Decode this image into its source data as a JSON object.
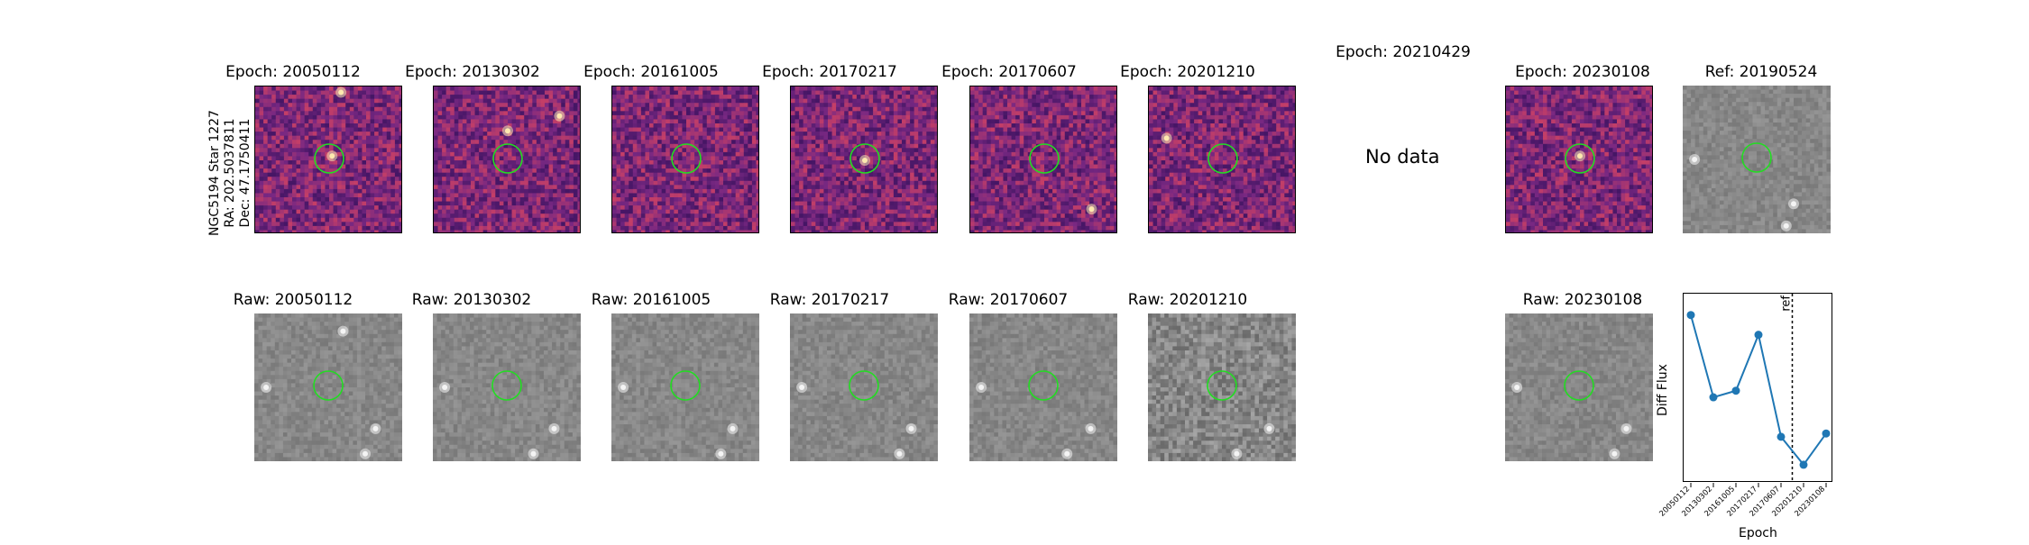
{
  "side_label": [
    "NGC5194 Star 1227",
    "RA: 202.5037811",
    "Dec: 47.1750411"
  ],
  "diff_titles": [
    "Epoch: 20050112",
    "Epoch: 20130302",
    "Epoch: 20161005",
    "Epoch: 20170217",
    "Epoch: 20170607",
    "Epoch: 20201210",
    "Epoch: 20210429",
    "Epoch: 20230108"
  ],
  "ref_title": "Ref: 20190524",
  "raw_titles": [
    "Raw: 20050112",
    "Raw: 20130302",
    "Raw: 20161005",
    "Raw: 20170217",
    "Raw: 20170607",
    "Raw: 20201210",
    "Raw: 20230108"
  ],
  "no_data_text": "No data",
  "colors": {
    "marker_circle": "#22dd22",
    "series": "#1f77b4",
    "diff_cmap_base": "#7b3286",
    "raw_base": "#8a8a8a"
  },
  "chart_data": {
    "type": "line",
    "xlabel": "Epoch",
    "ylabel": "Diff Flux",
    "categories": [
      "20050112",
      "20130302",
      "20161005",
      "20170217",
      "20170607",
      "20201210",
      "20230108"
    ],
    "values": [
      0.92,
      0.42,
      0.46,
      0.8,
      0.18,
      0.01,
      0.2
    ],
    "ylim": [
      -0.1,
      1.05
    ],
    "ref_line": {
      "label": "ref",
      "position_between": [
        "20170607",
        "20201210"
      ]
    },
    "grid": false
  }
}
